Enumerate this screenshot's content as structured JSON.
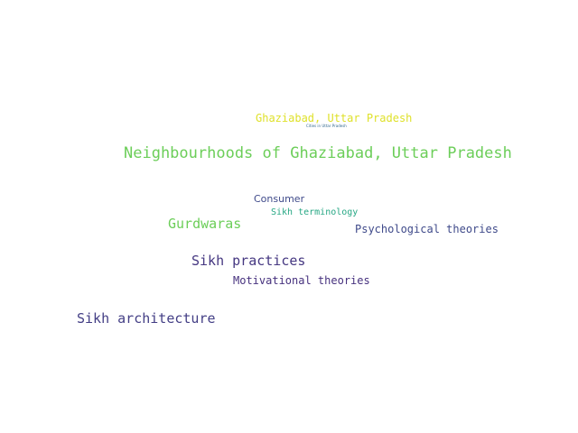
{
  "words": [
    {
      "id": "ghaziabad",
      "text": "Ghaziabad, Uttar Pradesh",
      "color": "#dfe12a"
    },
    {
      "id": "cities",
      "text": "Cities in Uttar Pradesh",
      "color": "#31688e"
    },
    {
      "id": "neighbourhoods",
      "text": "Neighbourhoods of Ghaziabad, Uttar Pradesh",
      "color": "#6cce59"
    },
    {
      "id": "consumer",
      "text": "Consumer",
      "color": "#3f4a8a"
    },
    {
      "id": "sikh-terminology",
      "text": "Sikh terminology",
      "color": "#26a784"
    },
    {
      "id": "gurdwaras",
      "text": "Gurdwaras",
      "color": "#6cce59"
    },
    {
      "id": "psychological-theories",
      "text": "Psychological theories",
      "color": "#3f4a8a"
    },
    {
      "id": "sikh-practices",
      "text": "Sikh practices",
      "color": "#453781"
    },
    {
      "id": "motivational-theories",
      "text": "Motivational theories",
      "color": "#46317e"
    },
    {
      "id": "sikh-architecture",
      "text": "Sikh architecture",
      "color": "#433e85"
    }
  ]
}
